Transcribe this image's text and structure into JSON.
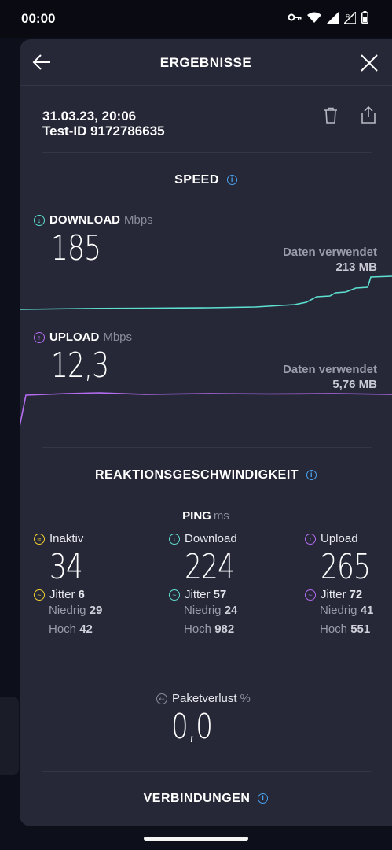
{
  "status": {
    "time": "00:00"
  },
  "header": {
    "title": "ERGEBNISSE"
  },
  "test": {
    "datetime": "31.03.23, 20:06",
    "test_id": "Test-ID 9172786635"
  },
  "speed": {
    "title": "SPEED",
    "download": {
      "label": "DOWNLOAD",
      "unit": "Mbps",
      "value": "185",
      "data_label": "Daten verwendet",
      "data_value": "213 MB"
    },
    "upload": {
      "label": "UPLOAD",
      "unit": "Mbps",
      "value": "12,3",
      "data_label": "Daten verwendet",
      "data_value": "5,76 MB"
    }
  },
  "reaction": {
    "title": "REAKTIONSGESCHWINDIGKEIT",
    "ping_label": "PING",
    "ping_unit": "ms",
    "columns": [
      {
        "label": "Inaktiv",
        "value": "34",
        "jitter_label": "Jitter",
        "jitter": "6",
        "low_label": "Niedrig",
        "low": "29",
        "high_label": "Hoch",
        "high": "42"
      },
      {
        "label": "Download",
        "value": "224",
        "jitter_label": "Jitter",
        "jitter": "57",
        "low_label": "Niedrig",
        "low": "24",
        "high_label": "Hoch",
        "high": "982"
      },
      {
        "label": "Upload",
        "value": "265",
        "jitter_label": "Jitter",
        "jitter": "72",
        "low_label": "Niedrig",
        "low": "41",
        "high_label": "Hoch",
        "high": "551"
      }
    ],
    "packet_loss_label": "Paketverlust",
    "packet_loss_unit": "%",
    "packet_loss_value": "0,0"
  },
  "connections": {
    "title": "VERBINDUNGEN"
  },
  "colors": {
    "download": "#5ee0d0",
    "upload": "#b46cf0",
    "info": "#4aa3f0",
    "idle": "#f0d030"
  }
}
